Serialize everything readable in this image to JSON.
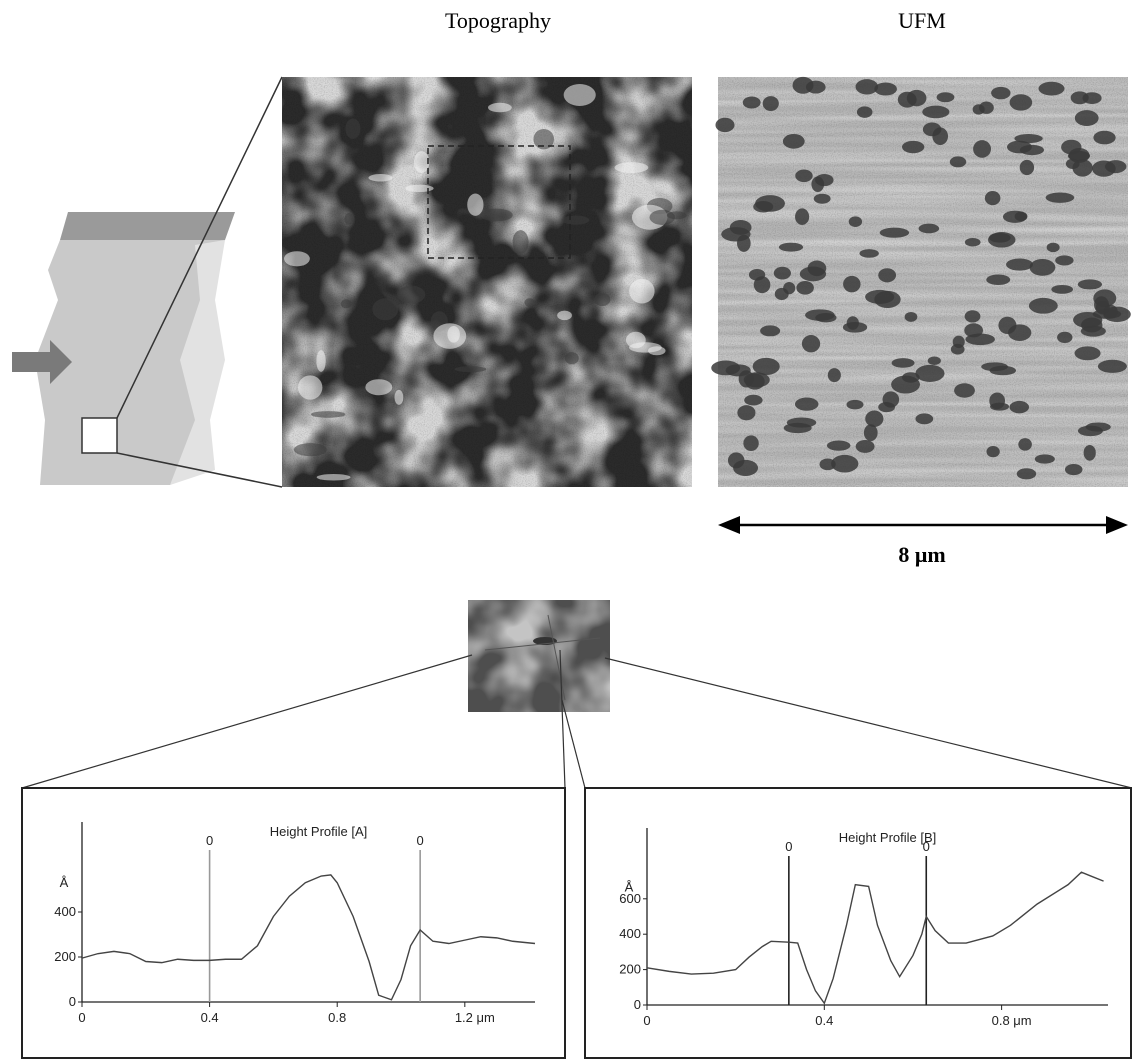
{
  "figure": {
    "topography_label": "Topography",
    "ufm_label": "UFM",
    "scale_bar": "8 μm"
  },
  "chart_data": [
    {
      "type": "line",
      "title": "Height Profile [A]",
      "y_label": "Å",
      "color": "#444",
      "x": [
        0,
        0.05,
        0.1,
        0.15,
        0.2,
        0.25,
        0.3,
        0.35,
        0.4,
        0.45,
        0.5,
        0.55,
        0.6,
        0.65,
        0.7,
        0.75,
        0.78,
        0.8,
        0.85,
        0.9,
        0.93,
        0.97,
        1.0,
        1.03,
        1.06,
        1.1,
        1.15,
        1.2,
        1.25,
        1.3,
        1.35,
        1.42
      ],
      "values": [
        195,
        215,
        225,
        215,
        180,
        175,
        190,
        185,
        185,
        190,
        190,
        250,
        380,
        470,
        530,
        560,
        565,
        530,
        380,
        180,
        30,
        10,
        100,
        250,
        320,
        270,
        260,
        275,
        290,
        285,
        270,
        260
      ],
      "xlim": [
        0,
        1.42
      ],
      "ylim": [
        0,
        800
      ],
      "xticks": [
        0,
        0.4,
        0.8,
        {
          "value": 1.2,
          "label": "1.2 μm"
        }
      ],
      "yticks": [
        0,
        200,
        400
      ],
      "cursors": [
        {
          "x": 0.4,
          "label": "0",
          "color": "#999"
        },
        {
          "x": 1.06,
          "label": "0",
          "color": "#999"
        }
      ]
    },
    {
      "type": "line",
      "title": "Height Profile [B]",
      "y_label": "Å",
      "color": "#444",
      "x": [
        0,
        0.05,
        0.1,
        0.15,
        0.2,
        0.23,
        0.26,
        0.28,
        0.32,
        0.34,
        0.36,
        0.38,
        0.4,
        0.42,
        0.45,
        0.47,
        0.5,
        0.52,
        0.55,
        0.57,
        0.6,
        0.62,
        0.63,
        0.65,
        0.68,
        0.72,
        0.78,
        0.82,
        0.88,
        0.95,
        0.98,
        1.0,
        1.03
      ],
      "values": [
        210,
        190,
        175,
        180,
        200,
        270,
        330,
        360,
        355,
        350,
        200,
        80,
        10,
        150,
        450,
        680,
        670,
        450,
        250,
        160,
        280,
        400,
        500,
        420,
        350,
        350,
        390,
        450,
        570,
        680,
        750,
        730,
        700
      ],
      "xlim": [
        0,
        1.04
      ],
      "ylim": [
        0,
        1000
      ],
      "xticks": [
        0,
        0.4,
        {
          "value": 0.8,
          "label": "0.8 μm"
        }
      ],
      "yticks": [
        0,
        200,
        400,
        600
      ],
      "cursors": [
        {
          "x": 0.32,
          "label": "0",
          "color": "#222"
        },
        {
          "x": 0.63,
          "label": "0",
          "color": "#222"
        }
      ]
    }
  ]
}
